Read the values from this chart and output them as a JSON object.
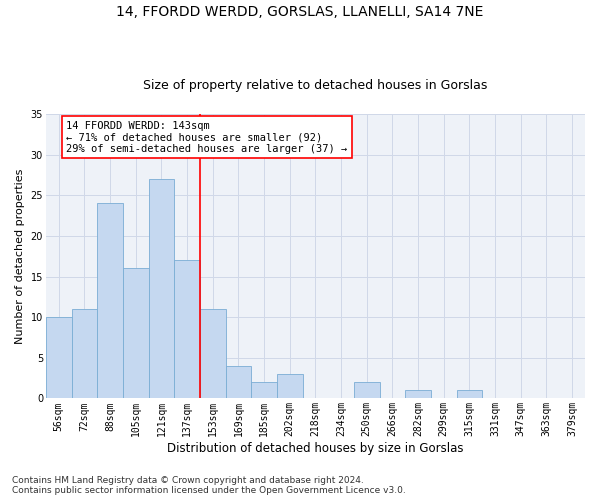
{
  "title1": "14, FFORDD WERDD, GORSLAS, LLANELLI, SA14 7NE",
  "title2": "Size of property relative to detached houses in Gorslas",
  "xlabel": "Distribution of detached houses by size in Gorslas",
  "ylabel": "Number of detached properties",
  "bar_values": [
    10,
    11,
    24,
    16,
    27,
    17,
    11,
    4,
    2,
    3,
    0,
    0,
    2,
    0,
    1,
    0,
    1,
    0,
    0,
    0,
    0
  ],
  "bar_labels": [
    "56sqm",
    "72sqm",
    "88sqm",
    "105sqm",
    "121sqm",
    "137sqm",
    "153sqm",
    "169sqm",
    "185sqm",
    "202sqm",
    "218sqm",
    "234sqm",
    "250sqm",
    "266sqm",
    "282sqm",
    "299sqm",
    "315sqm",
    "331sqm",
    "347sqm",
    "363sqm",
    "379sqm"
  ],
  "bar_color": "#c5d8f0",
  "bar_edgecolor": "#7aadd4",
  "grid_color": "#d0d8e8",
  "vline_color": "red",
  "annotation_text": "14 FFORDD WERDD: 143sqm\n← 71% of detached houses are smaller (92)\n29% of semi-detached houses are larger (37) →",
  "annotation_box_color": "white",
  "annotation_box_edgecolor": "red",
  "ylim": [
    0,
    35
  ],
  "yticks": [
    0,
    5,
    10,
    15,
    20,
    25,
    30,
    35
  ],
  "footnote": "Contains HM Land Registry data © Crown copyright and database right 2024.\nContains public sector information licensed under the Open Government Licence v3.0.",
  "bg_color": "#eef2f8",
  "title1_fontsize": 10,
  "title2_fontsize": 9,
  "xlabel_fontsize": 8.5,
  "ylabel_fontsize": 8,
  "tick_fontsize": 7,
  "annotation_fontsize": 7.5,
  "footnote_fontsize": 6.5
}
